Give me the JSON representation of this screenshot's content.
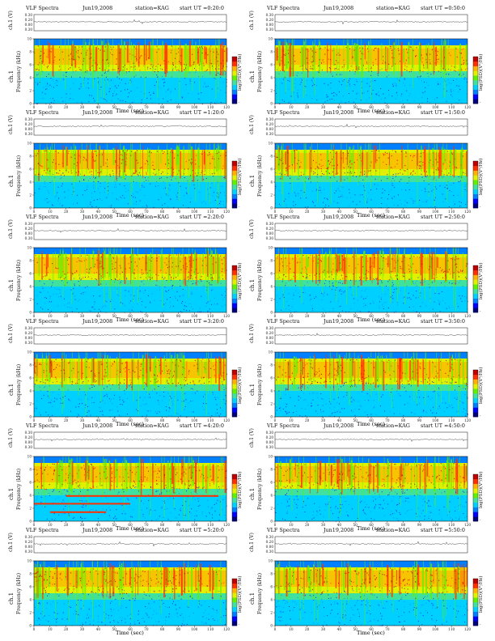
{
  "colors": {
    "colormap": [
      "#00007f",
      "#0000ff",
      "#0080ff",
      "#00d0ff",
      "#40e0a0",
      "#60f000",
      "#e0f000",
      "#ffb000",
      "#ff3000",
      "#c00000"
    ],
    "spectrogram_high_band": "#e0a020",
    "spectrogram_low_band": "#30c0c0"
  },
  "common": {
    "program": "VLF Spectra",
    "date": "Jun19,2008",
    "station": "station=KAG",
    "xlabel": "Time (sec)",
    "ylabel": "Frequency (kHz)",
    "channel_label": "ch.1",
    "volt_label": "ch.1 (V)",
    "colorbar_label": "log(PSD)(V²/Hz)",
    "volt_ticks": [
      "0.30",
      "0.20",
      "0.00",
      "0.30"
    ],
    "colorbar_ticks": [
      "-",
      "-"
    ]
  },
  "panels": [
    {
      "start": "start UT =0:20:0"
    },
    {
      "start": "start UT =0:50:0"
    },
    {
      "start": "start UT =1:20:0"
    },
    {
      "start": "start UT =1:50:0"
    },
    {
      "start": "start UT =2:20:0"
    },
    {
      "start": "start UT =2:50:0"
    },
    {
      "start": "start UT =3:20:0"
    },
    {
      "start": "start UT =3:50:0"
    },
    {
      "start": "start UT =4:20:0"
    },
    {
      "start": "start UT =4:50:0"
    },
    {
      "start": "start UT =5:20:0"
    },
    {
      "start": "start UT =5:50:0"
    }
  ],
  "chart_data": {
    "type": "heatmap",
    "panel_count": 12,
    "x": {
      "label": "Time (sec)",
      "range": [
        0,
        120
      ],
      "ticks": [
        0,
        10,
        20,
        30,
        40,
        50,
        60,
        70,
        80,
        90,
        100,
        110,
        120
      ]
    },
    "y": {
      "label": "Frequency (kHz)",
      "range": [
        0,
        10
      ],
      "ticks": [
        0,
        2,
        4,
        6,
        8,
        10
      ]
    },
    "colorbar": {
      "label": "log(PSD)(V²/Hz)"
    },
    "volt_trace": {
      "label": "ch.1 (V)"
    }
  }
}
